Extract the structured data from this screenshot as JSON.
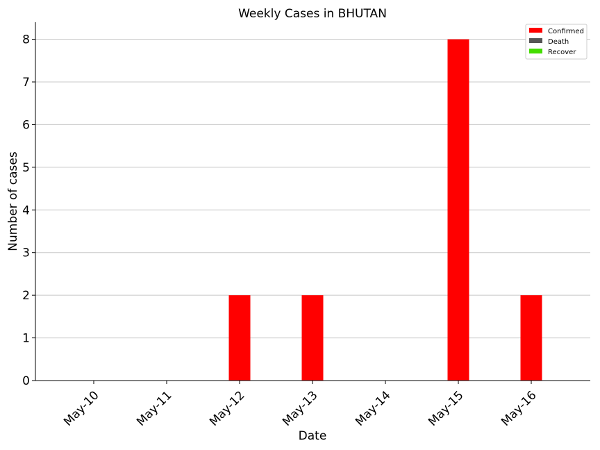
{
  "chart_data": {
    "type": "bar",
    "title": "Weekly Cases in BHUTAN",
    "xlabel": "Date",
    "ylabel": "Number of cases",
    "categories": [
      "May-10",
      "May-11",
      "May-12",
      "May-13",
      "May-14",
      "May-15",
      "May-16"
    ],
    "series": [
      {
        "name": "Confirmed",
        "color": "#ff0000",
        "values": [
          0,
          0,
          2,
          2,
          0,
          8,
          2
        ]
      },
      {
        "name": "Death",
        "color": "#555555",
        "values": [
          0,
          0,
          0,
          0,
          0,
          0,
          0
        ]
      },
      {
        "name": "Recover",
        "color": "#44dd00",
        "values": [
          0,
          0,
          0,
          0,
          0,
          0,
          0
        ]
      }
    ],
    "yticks": [
      0,
      1,
      2,
      3,
      4,
      5,
      6,
      7,
      8
    ],
    "ylim": [
      0,
      8.4
    ],
    "grid": "horizontal",
    "legend_position": "top-right"
  }
}
